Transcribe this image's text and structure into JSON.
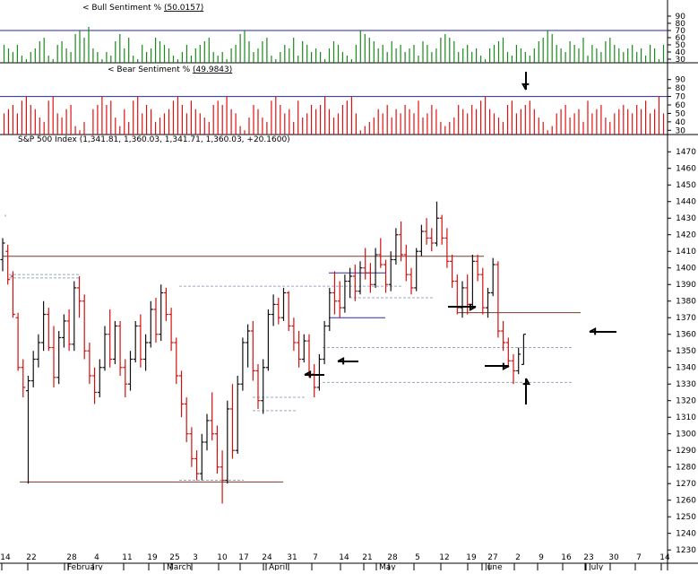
{
  "colors": {
    "bull": "#1a8a1a",
    "bear": "#e01010",
    "up": "#111111",
    "down": "#d21010",
    "level_line": "#7a3a2a",
    "support_line": "#2a2ab0",
    "dashed": "#9aa8c0",
    "divider": "#000000"
  },
  "chart_data": [
    {
      "type": "bar",
      "title": "Bull Sentiment %",
      "label_prefix": "<",
      "value_label": "(50.0157)",
      "ylim": [
        25,
        95
      ],
      "yticks": [
        30,
        40,
        50,
        60,
        70,
        80,
        90
      ],
      "reference_level": 70,
      "values": [
        50,
        45,
        40,
        50,
        35,
        30,
        40,
        45,
        55,
        60,
        35,
        30,
        50,
        55,
        45,
        40,
        65,
        70,
        60,
        75,
        45,
        40,
        30,
        40,
        35,
        55,
        65,
        45,
        60,
        35,
        30,
        50,
        40,
        45,
        60,
        55,
        50,
        45,
        35,
        30,
        40,
        50,
        35,
        45,
        50,
        55,
        60,
        40,
        35,
        40,
        30,
        45,
        50,
        65,
        70,
        55,
        40,
        45,
        55,
        60,
        35,
        30,
        40,
        50,
        45,
        60,
        35,
        55,
        50,
        40,
        45,
        40,
        30,
        45,
        55,
        50,
        40,
        35,
        30,
        50,
        70,
        65,
        60,
        55,
        45,
        50,
        40,
        55,
        45,
        50,
        40,
        45,
        50,
        35,
        55,
        50,
        40,
        45,
        60,
        65,
        60,
        55,
        40,
        45,
        50,
        40,
        45,
        35,
        30,
        45,
        50,
        55,
        60,
        40,
        35,
        50,
        45,
        40,
        35,
        45,
        55,
        60,
        70,
        65,
        50,
        45,
        40,
        55,
        50,
        45,
        60,
        35,
        50,
        45,
        40,
        55,
        60,
        50,
        45,
        40,
        45,
        50,
        40,
        45,
        35,
        50,
        45,
        30,
        50
      ]
    },
    {
      "type": "bar",
      "title": "Bear Sentiment %",
      "label_prefix": "<",
      "value_label": "(49.9843)",
      "ylim": [
        25,
        95
      ],
      "yticks": [
        30,
        40,
        50,
        60,
        70,
        80,
        90
      ],
      "reference_level": 70,
      "values": [
        50,
        55,
        60,
        50,
        65,
        70,
        60,
        55,
        45,
        40,
        65,
        70,
        50,
        45,
        55,
        60,
        35,
        30,
        40,
        25,
        55,
        60,
        70,
        60,
        65,
        45,
        35,
        55,
        40,
        65,
        70,
        50,
        60,
        55,
        40,
        45,
        50,
        55,
        65,
        70,
        60,
        50,
        65,
        55,
        50,
        45,
        40,
        60,
        65,
        60,
        70,
        55,
        50,
        35,
        30,
        45,
        60,
        55,
        45,
        40,
        65,
        70,
        60,
        50,
        55,
        40,
        65,
        45,
        50,
        60,
        55,
        60,
        70,
        55,
        45,
        50,
        60,
        65,
        70,
        50,
        30,
        35,
        40,
        45,
        55,
        50,
        60,
        45,
        55,
        50,
        60,
        55,
        50,
        65,
        45,
        50,
        60,
        55,
        40,
        35,
        40,
        45,
        60,
        55,
        50,
        60,
        55,
        65,
        70,
        55,
        50,
        45,
        40,
        60,
        65,
        50,
        55,
        60,
        65,
        55,
        45,
        40,
        30,
        35,
        50,
        55,
        60,
        45,
        50,
        55,
        40,
        65,
        50,
        55,
        60,
        45,
        40,
        50,
        55,
        60,
        55,
        50,
        60,
        55,
        65,
        50,
        55,
        70,
        50
      ]
    },
    {
      "type": "ohlc",
      "title": "S&P 500 Index (1,341.81, 1,360.03, 1,341.71, 1,360.03, +20.1600)",
      "ylim": [
        1222,
        1475
      ],
      "yticks": [
        1230,
        1240,
        1250,
        1260,
        1270,
        1280,
        1290,
        1300,
        1310,
        1320,
        1330,
        1340,
        1350,
        1360,
        1370,
        1380,
        1390,
        1400,
        1410,
        1420,
        1430,
        1440,
        1450,
        1460,
        1470
      ],
      "x_tick_labels": [
        "14",
        "22",
        "28",
        "4",
        "11",
        "19",
        "25",
        "3",
        "10",
        "17",
        "24",
        "31",
        "7",
        "14",
        "21",
        "28",
        "5",
        "12",
        "19",
        "27",
        "2",
        "9",
        "16",
        "23",
        "30",
        "7",
        "14"
      ],
      "month_labels": [
        "February",
        "March",
        "April",
        "May",
        "June",
        "July"
      ],
      "candles": [
        {
          "o": 1405,
          "h": 1418,
          "l": 1398,
          "c": 1415
        },
        {
          "o": 1410,
          "h": 1414,
          "l": 1390,
          "c": 1393
        },
        {
          "o": 1395,
          "h": 1398,
          "l": 1370,
          "c": 1372
        },
        {
          "o": 1370,
          "h": 1373,
          "l": 1338,
          "c": 1340
        },
        {
          "o": 1340,
          "h": 1345,
          "l": 1322,
          "c": 1328
        },
        {
          "o": 1326,
          "h": 1335,
          "l": 1270,
          "c": 1332
        },
        {
          "o": 1332,
          "h": 1350,
          "l": 1328,
          "c": 1345
        },
        {
          "o": 1345,
          "h": 1360,
          "l": 1340,
          "c": 1355
        },
        {
          "o": 1355,
          "h": 1380,
          "l": 1350,
          "c": 1372
        },
        {
          "o": 1372,
          "h": 1376,
          "l": 1350,
          "c": 1352
        },
        {
          "o": 1352,
          "h": 1365,
          "l": 1328,
          "c": 1334
        },
        {
          "o": 1334,
          "h": 1362,
          "l": 1330,
          "c": 1358
        },
        {
          "o": 1358,
          "h": 1372,
          "l": 1352,
          "c": 1368
        },
        {
          "o": 1368,
          "h": 1375,
          "l": 1350,
          "c": 1354
        },
        {
          "o": 1354,
          "h": 1392,
          "l": 1350,
          "c": 1388
        },
        {
          "o": 1388,
          "h": 1395,
          "l": 1370,
          "c": 1380
        },
        {
          "o": 1380,
          "h": 1384,
          "l": 1345,
          "c": 1350
        },
        {
          "o": 1350,
          "h": 1355,
          "l": 1330,
          "c": 1335
        },
        {
          "o": 1335,
          "h": 1340,
          "l": 1318,
          "c": 1325
        },
        {
          "o": 1325,
          "h": 1345,
          "l": 1322,
          "c": 1340
        },
        {
          "o": 1340,
          "h": 1365,
          "l": 1338,
          "c": 1360
        },
        {
          "o": 1360,
          "h": 1375,
          "l": 1340,
          "c": 1345
        },
        {
          "o": 1345,
          "h": 1368,
          "l": 1342,
          "c": 1365
        },
        {
          "o": 1365,
          "h": 1368,
          "l": 1335,
          "c": 1340
        },
        {
          "o": 1340,
          "h": 1345,
          "l": 1322,
          "c": 1330
        },
        {
          "o": 1330,
          "h": 1350,
          "l": 1326,
          "c": 1345
        },
        {
          "o": 1345,
          "h": 1368,
          "l": 1343,
          "c": 1365
        },
        {
          "o": 1365,
          "h": 1372,
          "l": 1340,
          "c": 1345
        },
        {
          "o": 1345,
          "h": 1360,
          "l": 1338,
          "c": 1355
        },
        {
          "o": 1355,
          "h": 1380,
          "l": 1352,
          "c": 1375
        },
        {
          "o": 1375,
          "h": 1382,
          "l": 1355,
          "c": 1360
        },
        {
          "o": 1360,
          "h": 1390,
          "l": 1356,
          "c": 1385
        },
        {
          "o": 1385,
          "h": 1388,
          "l": 1368,
          "c": 1372
        },
        {
          "o": 1372,
          "h": 1376,
          "l": 1350,
          "c": 1355
        },
        {
          "o": 1355,
          "h": 1358,
          "l": 1330,
          "c": 1335
        },
        {
          "o": 1335,
          "h": 1338,
          "l": 1310,
          "c": 1318
        },
        {
          "o": 1318,
          "h": 1322,
          "l": 1295,
          "c": 1300
        },
        {
          "o": 1300,
          "h": 1304,
          "l": 1280,
          "c": 1285
        },
        {
          "o": 1285,
          "h": 1290,
          "l": 1272,
          "c": 1276
        },
        {
          "o": 1276,
          "h": 1300,
          "l": 1272,
          "c": 1295
        },
        {
          "o": 1295,
          "h": 1312,
          "l": 1290,
          "c": 1308
        },
        {
          "o": 1308,
          "h": 1325,
          "l": 1296,
          "c": 1300
        },
        {
          "o": 1300,
          "h": 1305,
          "l": 1276,
          "c": 1280
        },
        {
          "o": 1280,
          "h": 1290,
          "l": 1258,
          "c": 1272
        },
        {
          "o": 1272,
          "h": 1320,
          "l": 1270,
          "c": 1315
        },
        {
          "o": 1315,
          "h": 1330,
          "l": 1285,
          "c": 1290
        },
        {
          "o": 1290,
          "h": 1335,
          "l": 1288,
          "c": 1330
        },
        {
          "o": 1330,
          "h": 1358,
          "l": 1326,
          "c": 1355
        },
        {
          "o": 1355,
          "h": 1366,
          "l": 1340,
          "c": 1362
        },
        {
          "o": 1362,
          "h": 1368,
          "l": 1332,
          "c": 1338
        },
        {
          "o": 1338,
          "h": 1342,
          "l": 1315,
          "c": 1320
        },
        {
          "o": 1320,
          "h": 1345,
          "l": 1312,
          "c": 1340
        },
        {
          "o": 1340,
          "h": 1375,
          "l": 1338,
          "c": 1372
        },
        {
          "o": 1372,
          "h": 1384,
          "l": 1365,
          "c": 1378
        },
        {
          "o": 1378,
          "h": 1382,
          "l": 1366,
          "c": 1370
        },
        {
          "o": 1370,
          "h": 1388,
          "l": 1368,
          "c": 1385
        },
        {
          "o": 1385,
          "h": 1386,
          "l": 1362,
          "c": 1365
        },
        {
          "o": 1365,
          "h": 1370,
          "l": 1350,
          "c": 1355
        },
        {
          "o": 1355,
          "h": 1362,
          "l": 1340,
          "c": 1345
        },
        {
          "o": 1345,
          "h": 1360,
          "l": 1343,
          "c": 1356
        },
        {
          "o": 1356,
          "h": 1360,
          "l": 1334,
          "c": 1336
        },
        {
          "o": 1336,
          "h": 1342,
          "l": 1322,
          "c": 1328
        },
        {
          "o": 1328,
          "h": 1348,
          "l": 1326,
          "c": 1345
        },
        {
          "o": 1345,
          "h": 1368,
          "l": 1342,
          "c": 1365
        },
        {
          "o": 1365,
          "h": 1388,
          "l": 1362,
          "c": 1385
        },
        {
          "o": 1385,
          "h": 1398,
          "l": 1372,
          "c": 1380
        },
        {
          "o": 1380,
          "h": 1392,
          "l": 1370,
          "c": 1376
        },
        {
          "o": 1376,
          "h": 1396,
          "l": 1373,
          "c": 1392
        },
        {
          "o": 1392,
          "h": 1400,
          "l": 1382,
          "c": 1395
        },
        {
          "o": 1395,
          "h": 1402,
          "l": 1380,
          "c": 1386
        },
        {
          "o": 1386,
          "h": 1404,
          "l": 1384,
          "c": 1400
        },
        {
          "o": 1400,
          "h": 1412,
          "l": 1393,
          "c": 1397
        },
        {
          "o": 1397,
          "h": 1403,
          "l": 1385,
          "c": 1390
        },
        {
          "o": 1390,
          "h": 1412,
          "l": 1388,
          "c": 1408
        },
        {
          "o": 1408,
          "h": 1418,
          "l": 1400,
          "c": 1402
        },
        {
          "o": 1402,
          "h": 1405,
          "l": 1385,
          "c": 1390
        },
        {
          "o": 1390,
          "h": 1410,
          "l": 1386,
          "c": 1405
        },
        {
          "o": 1405,
          "h": 1424,
          "l": 1402,
          "c": 1420
        },
        {
          "o": 1420,
          "h": 1428,
          "l": 1404,
          "c": 1408
        },
        {
          "o": 1408,
          "h": 1414,
          "l": 1392,
          "c": 1396
        },
        {
          "o": 1396,
          "h": 1400,
          "l": 1384,
          "c": 1388
        },
        {
          "o": 1388,
          "h": 1412,
          "l": 1386,
          "c": 1410
        },
        {
          "o": 1410,
          "h": 1426,
          "l": 1407,
          "c": 1422
        },
        {
          "o": 1422,
          "h": 1430,
          "l": 1414,
          "c": 1418
        },
        {
          "o": 1418,
          "h": 1424,
          "l": 1410,
          "c": 1415
        },
        {
          "o": 1415,
          "h": 1440,
          "l": 1413,
          "c": 1430
        },
        {
          "o": 1430,
          "h": 1432,
          "l": 1414,
          "c": 1418
        },
        {
          "o": 1418,
          "h": 1424,
          "l": 1400,
          "c": 1404
        },
        {
          "o": 1404,
          "h": 1408,
          "l": 1388,
          "c": 1392
        },
        {
          "o": 1392,
          "h": 1396,
          "l": 1372,
          "c": 1376
        },
        {
          "o": 1376,
          "h": 1392,
          "l": 1370,
          "c": 1388
        },
        {
          "o": 1388,
          "h": 1396,
          "l": 1372,
          "c": 1378
        },
        {
          "o": 1378,
          "h": 1408,
          "l": 1376,
          "c": 1404
        },
        {
          "o": 1404,
          "h": 1408,
          "l": 1392,
          "c": 1396
        },
        {
          "o": 1396,
          "h": 1400,
          "l": 1372,
          "c": 1376
        },
        {
          "o": 1376,
          "h": 1388,
          "l": 1370,
          "c": 1385
        },
        {
          "o": 1385,
          "h": 1406,
          "l": 1383,
          "c": 1402
        },
        {
          "o": 1402,
          "h": 1404,
          "l": 1358,
          "c": 1362
        },
        {
          "o": 1362,
          "h": 1368,
          "l": 1350,
          "c": 1355
        },
        {
          "o": 1355,
          "h": 1358,
          "l": 1340,
          "c": 1344
        },
        {
          "o": 1344,
          "h": 1348,
          "l": 1330,
          "c": 1338
        },
        {
          "o": 1338,
          "h": 1352,
          "l": 1336,
          "c": 1348
        },
        {
          "o": 1341.81,
          "h": 1360.03,
          "l": 1341.71,
          "c": 1360.03
        }
      ]
    }
  ]
}
